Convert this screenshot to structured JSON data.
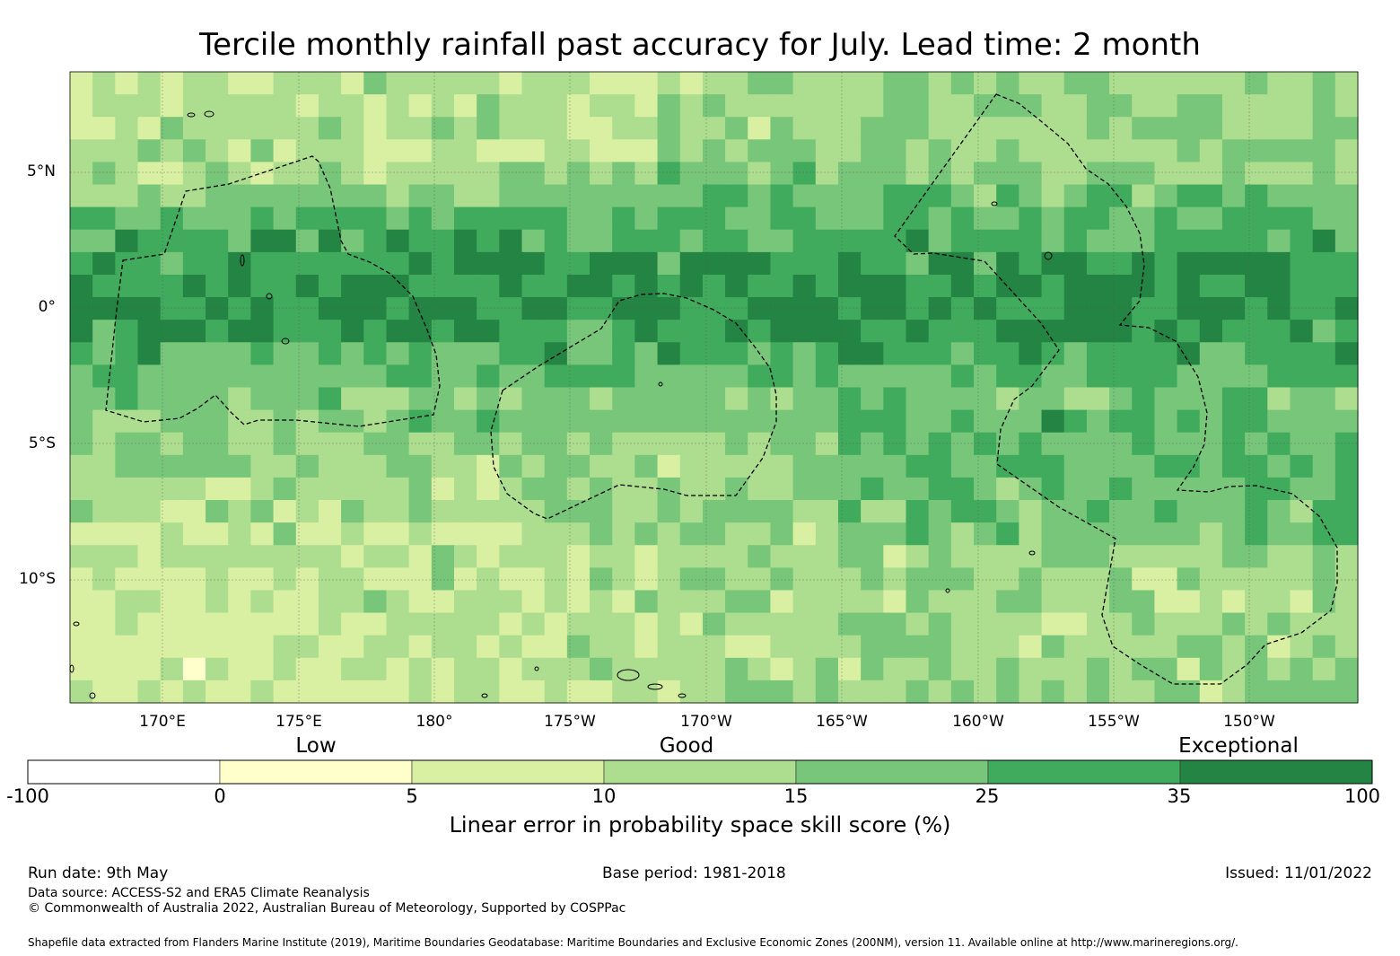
{
  "title": "Tercile monthly rainfall past accuracy for July. Lead time: 2 month",
  "map": {
    "lat_labels": [
      "5°N",
      "0°",
      "5°S",
      "10°S"
    ],
    "lon_labels": [
      "170°E",
      "175°E",
      "180°",
      "175°W",
      "170°W",
      "165°W",
      "160°W",
      "155°W",
      "150°W"
    ],
    "grid_cols": 57,
    "grid_rows": 28,
    "grid_visible": true,
    "eez_boundaries": [
      "Tuvalu/Kiribati west",
      "Tokelau",
      "Kiribati (Line Islands)",
      "Cook Islands / French Polynesia"
    ]
  },
  "legend": {
    "category_labels": [
      "Low",
      "Good",
      "Exceptional"
    ],
    "ticks": [
      "-100",
      "0",
      "5",
      "10",
      "15",
      "25",
      "35",
      "100"
    ],
    "colors": [
      "#ffffff",
      "#ffffcc",
      "#d9f0a3",
      "#addd8e",
      "#78c679",
      "#41ab5d",
      "#238443"
    ],
    "title": "Linear error in probability space skill score (%)"
  },
  "footer": {
    "run_date": "Run date: 9th May",
    "base_period": "Base period: 1981-2018",
    "issued": "Issued: 11/01/2022",
    "data_source": "Data source: ACCESS-S2 and ERA5 Climate Reanalysis",
    "copyright": "© Commonwealth of Australia 2022, Australian Bureau of Meteorology, Supported by COSPPac",
    "shapefile": "Shapefile data extracted from Flanders Marine Institute (2019), Maritime Boundaries Geodatabase: Maritime Boundaries and Exclusive Economic Zones (200NM), version 11. Available online at http://www.marineregions.org/."
  }
}
